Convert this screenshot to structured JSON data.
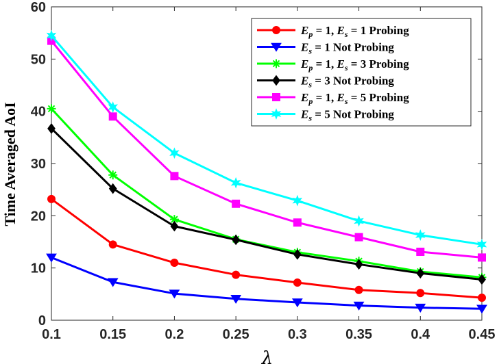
{
  "chart_data": {
    "type": "line",
    "title": "",
    "xlabel": "λ",
    "ylabel": "Time Averaged AoI",
    "xlim": [
      0.1,
      0.45
    ],
    "ylim": [
      0,
      60
    ],
    "x_ticks": [
      "0.1",
      "0.15",
      "0.2",
      "0.25",
      "0.3",
      "0.35",
      "0.4",
      "0.45"
    ],
    "y_ticks": [
      "0",
      "10",
      "20",
      "30",
      "40",
      "50",
      "60"
    ],
    "legend_position": "top-right",
    "x": [
      0.1,
      0.15,
      0.2,
      0.25,
      0.3,
      0.35,
      0.4,
      0.45
    ],
    "series": [
      {
        "name": "E_p = 1, E_s = 1 Probing",
        "legend": {
          "v1": "E",
          "s1": "p",
          "eq1": " = 1, ",
          "v2": "E",
          "s2": "s",
          "eq2": " = 1 ",
          "tail": "Probing"
        },
        "color": "#ff0000",
        "marker": "circle",
        "values": [
          23.2,
          14.5,
          11.0,
          8.7,
          7.2,
          5.8,
          5.2,
          4.3
        ]
      },
      {
        "name": "E_s = 1 Not Probing",
        "legend": {
          "v1": "E",
          "s1": "s",
          "eq1": " = 1 ",
          "tail": "Not Probing"
        },
        "color": "#0000ff",
        "marker": "triangle-down",
        "values": [
          12.0,
          7.3,
          5.1,
          4.1,
          3.4,
          2.8,
          2.4,
          2.2
        ]
      },
      {
        "name": "E_p = 1, E_s = 3 Probing",
        "legend": {
          "v1": "E",
          "s1": "p",
          "eq1": " = 1, ",
          "v2": "E",
          "s2": "s",
          "eq2": " = 3 ",
          "tail": "Probing"
        },
        "color": "#00ff00",
        "marker": "asterisk",
        "values": [
          40.5,
          27.8,
          19.3,
          15.5,
          13.0,
          11.3,
          9.3,
          8.2
        ]
      },
      {
        "name": "E_s = 3 Not Probing",
        "legend": {
          "v1": "E",
          "s1": "s",
          "eq1": " = 3 ",
          "tail": "Not Probing"
        },
        "color": "#000000",
        "marker": "diamond",
        "values": [
          36.7,
          25.2,
          18.0,
          15.4,
          12.6,
          10.7,
          9.0,
          7.8
        ]
      },
      {
        "name": "E_p = 1, E_s = 5 Probing",
        "legend": {
          "v1": "E",
          "s1": "p",
          "eq1": " = 1, ",
          "v2": "E",
          "s2": "s",
          "eq2": " = 5 ",
          "tail": "Probing"
        },
        "color": "#ff00ff",
        "marker": "square",
        "values": [
          53.5,
          39.0,
          27.6,
          22.3,
          18.7,
          15.9,
          13.1,
          12.0
        ]
      },
      {
        "name": "E_s = 5 Not Probing",
        "legend": {
          "v1": "E",
          "s1": "s",
          "eq1": " = 5 ",
          "tail": "Not Probing"
        },
        "color": "#00ffff",
        "marker": "hexagram",
        "values": [
          54.5,
          40.8,
          32.0,
          26.3,
          22.9,
          19.0,
          16.3,
          14.5
        ]
      }
    ]
  }
}
